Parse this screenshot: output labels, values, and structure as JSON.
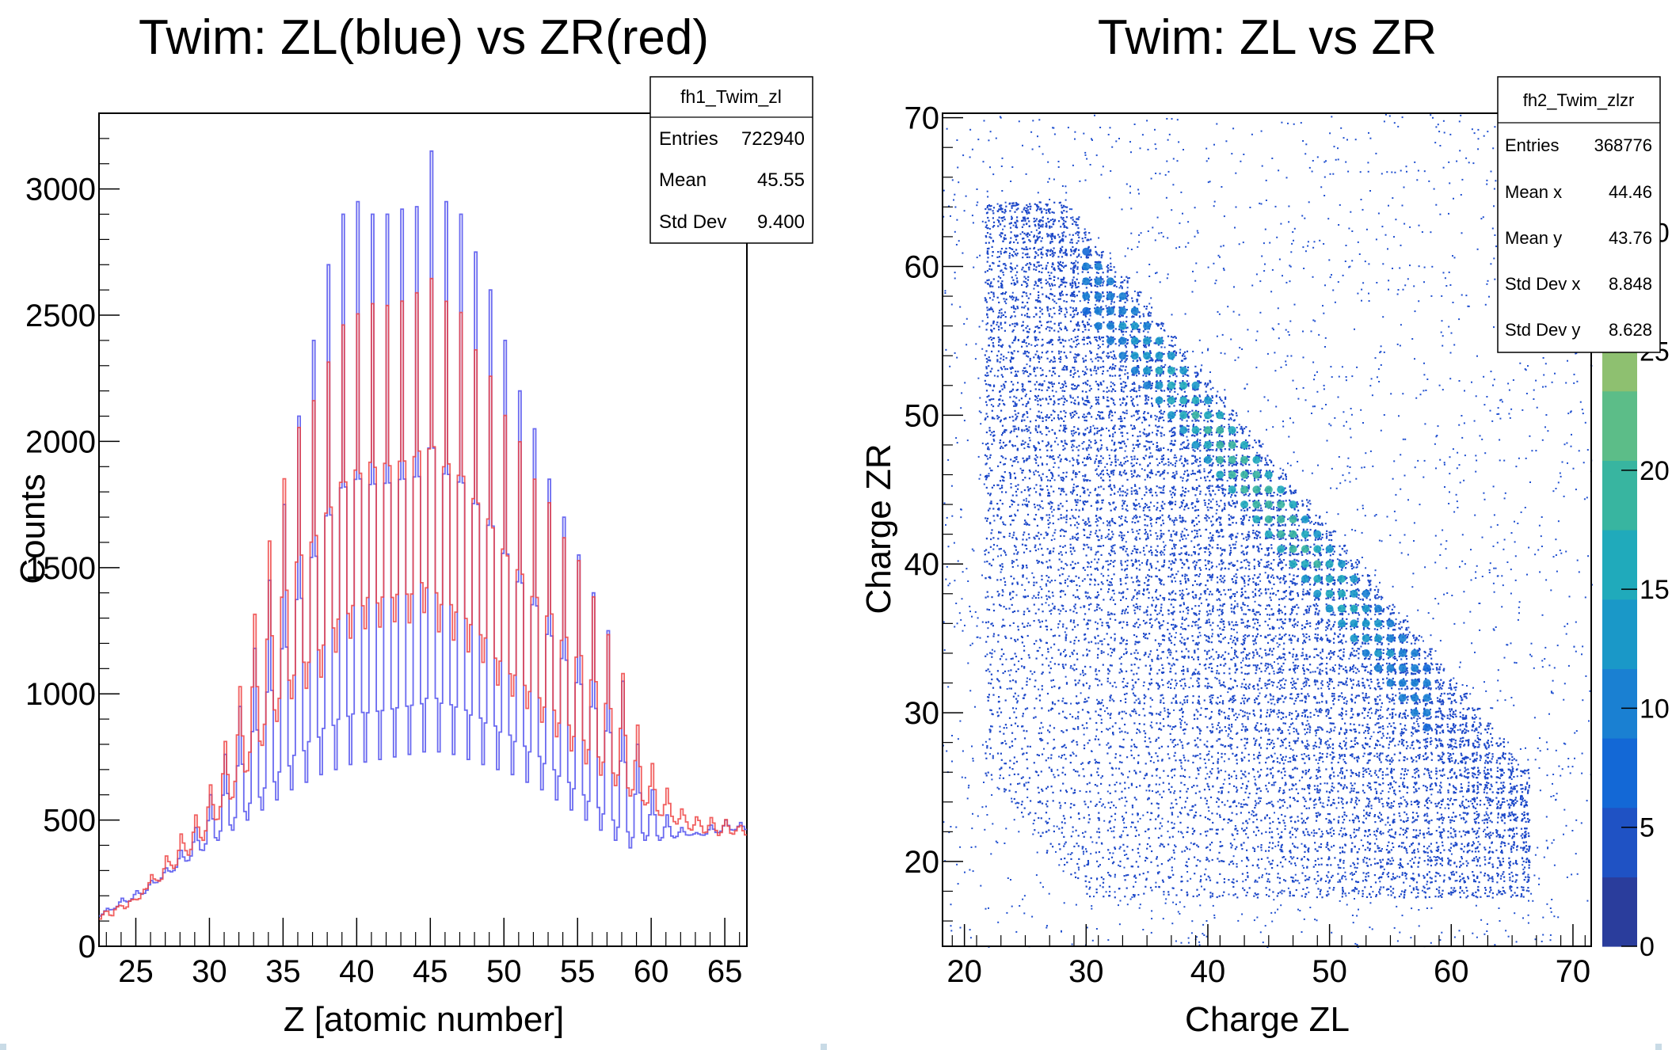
{
  "left_chart": {
    "title": "Twim: ZL(blue) vs ZR(red)",
    "xlabel": "Z [atomic number]",
    "ylabel": "Counts",
    "stats": {
      "name": "fh1_Twim_zl",
      "rows": [
        {
          "label": "Entries",
          "value": "722940"
        },
        {
          "label": "Mean",
          "value": "45.55"
        },
        {
          "label": "Std Dev",
          "value": "9.400"
        }
      ]
    }
  },
  "right_chart": {
    "title": "Twim: ZL vs ZR",
    "xlabel": "Charge ZL",
    "ylabel": "Charge ZR",
    "stats": {
      "name": "fh2_Twim_zlzr",
      "rows": [
        {
          "label": "Entries",
          "value": "368776"
        },
        {
          "label": "Mean x",
          "value": "44.46"
        },
        {
          "label": "Mean y",
          "value": "43.76"
        },
        {
          "label": "Std Dev x",
          "value": "8.848"
        },
        {
          "label": "Std Dev y",
          "value": "8.628"
        }
      ]
    }
  },
  "chart_data": [
    {
      "type": "line",
      "title": "Twim: ZL(blue) vs ZR(red)",
      "xlabel": "Z [atomic number]",
      "ylabel": "Counts",
      "xlim": [
        22.5,
        66.5
      ],
      "ylim": [
        0,
        3300
      ],
      "x_ticks": [
        25,
        30,
        35,
        40,
        45,
        50,
        55,
        60,
        65
      ],
      "y_ticks": [
        0,
        500,
        1000,
        1500,
        2000,
        2500,
        3000
      ],
      "grid": false,
      "series": [
        {
          "color": "#5a5aee",
          "x": [
            23,
            24,
            25,
            26,
            27,
            28,
            29,
            30,
            31,
            32,
            33,
            34,
            35,
            36,
            37,
            38,
            39,
            40,
            41,
            42,
            43,
            44,
            45,
            46,
            47,
            48,
            49,
            50,
            51,
            52,
            53,
            54,
            55,
            56,
            57,
            58,
            59,
            60,
            61,
            62,
            63,
            64,
            65,
            66
          ],
          "peak": [
            150,
            190,
            220,
            260,
            310,
            380,
            470,
            600,
            760,
            950,
            1180,
            1450,
            1750,
            2100,
            2400,
            2700,
            2900,
            2950,
            2900,
            2900,
            2920,
            2930,
            3150,
            2950,
            2900,
            2750,
            2600,
            2400,
            2200,
            2050,
            1850,
            1700,
            1550,
            1400,
            1250,
            1050,
            800,
            620,
            520,
            470,
            450,
            480,
            500,
            490
          ],
          "valley": [
            120,
            150,
            180,
            210,
            260,
            300,
            340,
            380,
            420,
            460,
            500,
            540,
            580,
            620,
            650,
            680,
            700,
            720,
            730,
            740,
            750,
            760,
            770,
            770,
            760,
            740,
            720,
            700,
            680,
            650,
            620,
            580,
            540,
            500,
            460,
            420,
            390,
            420,
            420,
            430,
            440,
            440,
            450,
            460
          ]
        },
        {
          "color": "#ee4444",
          "x": [
            23,
            24,
            25,
            26,
            27,
            28,
            29,
            30,
            31,
            32,
            33,
            34,
            35,
            36,
            37,
            38,
            39,
            40,
            41,
            42,
            43,
            44,
            45,
            46,
            47,
            48,
            49,
            50,
            51,
            52,
            53,
            54,
            55,
            56,
            57,
            58,
            59,
            60,
            61,
            62,
            63,
            64,
            65,
            66
          ],
          "peak": [
            140,
            170,
            200,
            300,
            370,
            450,
            520,
            640,
            820,
            1050,
            1350,
            1650,
            1900,
            2100,
            2200,
            2350,
            2500,
            2550,
            2600,
            2600,
            2620,
            2650,
            2700,
            2600,
            2550,
            2400,
            2300,
            2150,
            2050,
            1900,
            1800,
            1650,
            1550,
            1400,
            1250,
            1100,
            900,
            750,
            650,
            560,
            520,
            510,
            500,
            480
          ],
          "valley": [
            110,
            140,
            170,
            220,
            260,
            320,
            380,
            440,
            520,
            600,
            700,
            800,
            900,
            1000,
            1050,
            1100,
            1200,
            1250,
            1280,
            1280,
            1300,
            1300,
            1350,
            1280,
            1250,
            1200,
            1150,
            1050,
            1000,
            950,
            900,
            850,
            800,
            750,
            700,
            650,
            600,
            560,
            520,
            500,
            480,
            470,
            460,
            460
          ]
        }
      ]
    },
    {
      "type": "heatmap",
      "title": "Twim: ZL vs ZR",
      "xlabel": "Charge ZL",
      "ylabel": "Charge ZR",
      "xlim": [
        18.2,
        71.5
      ],
      "ylim": [
        14.3,
        70.3
      ],
      "x_ticks": [
        20,
        30,
        40,
        50,
        60,
        70
      ],
      "y_ticks": [
        20,
        30,
        40,
        50,
        60,
        70
      ],
      "colorbar_ticks": [
        0,
        5,
        10,
        15,
        20,
        25,
        30
      ],
      "colorbar_range": [
        0,
        35
      ],
      "colorbar_colors": [
        "#2a3d9c",
        "#1f52c4",
        "#1368d6",
        "#1a80d2",
        "#1a98c8",
        "#20aabb",
        "#38b5a0",
        "#5cbd88",
        "#8ec070",
        "#b8bf58",
        "#d8ba44",
        "#eeb23a"
      ]
    }
  ]
}
